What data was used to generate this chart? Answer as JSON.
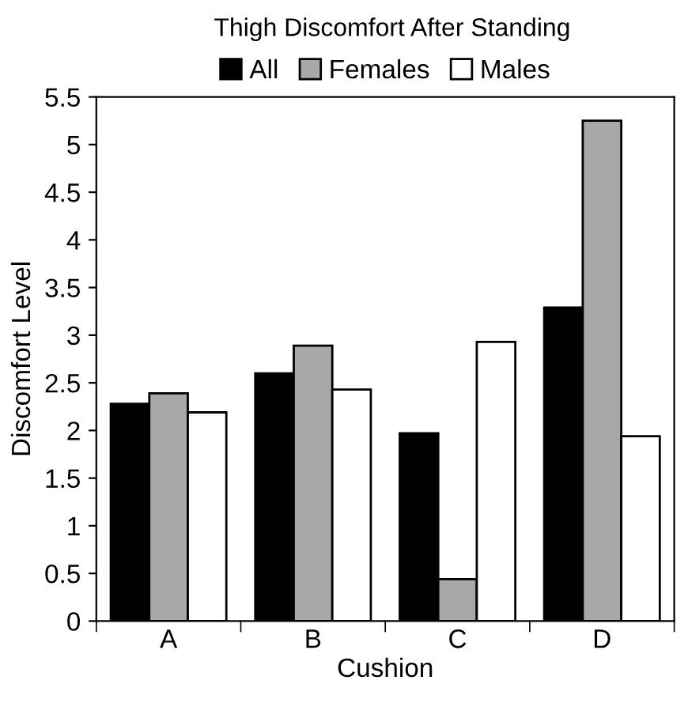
{
  "chart_data": {
    "type": "bar",
    "title": "Thigh Discomfort After Standing",
    "xlabel": "Cushion",
    "ylabel": "Discomfort Level",
    "categories": [
      "A",
      "B",
      "C",
      "D"
    ],
    "series": [
      {
        "name": "All",
        "color": "#000000",
        "values": [
          2.28,
          2.6,
          1.97,
          3.29
        ]
      },
      {
        "name": "Females",
        "color": "#a8a8a8",
        "values": [
          2.39,
          2.89,
          0.44,
          5.25
        ]
      },
      {
        "name": "Males",
        "color": "#ffffff",
        "values": [
          2.19,
          2.43,
          2.93,
          1.94
        ]
      }
    ],
    "ylim": [
      0,
      5.5
    ],
    "yticks": [
      0,
      0.5,
      1,
      1.5,
      2,
      2.5,
      3,
      3.5,
      4,
      4.5,
      5,
      5.5
    ],
    "grid": false,
    "legend": "top"
  }
}
